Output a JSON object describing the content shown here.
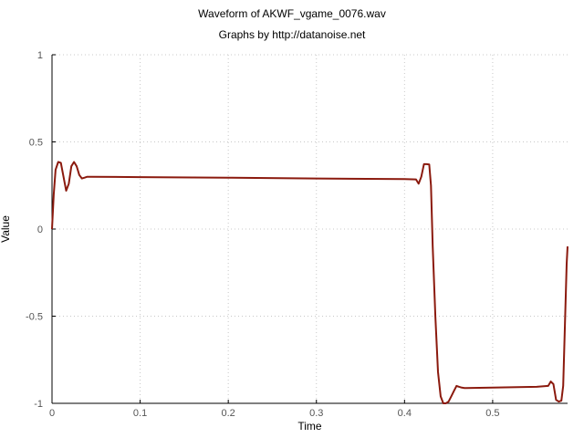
{
  "chart_data": {
    "type": "line",
    "title": "Waveform of AKWF_vgame_0076.wav",
    "subtitle": "Graphs by http://datanoise.net",
    "xlabel": "Time",
    "ylabel": "Value",
    "xlim": [
      0,
      0.585
    ],
    "ylim": [
      -1,
      1
    ],
    "xticks": [
      "0",
      "0.1",
      "0.2",
      "0.3",
      "0.4",
      "0.5"
    ],
    "xtick_values": [
      0,
      0.1,
      0.2,
      0.3,
      0.4,
      0.5
    ],
    "yticks": [
      "-1",
      "-0.5",
      "0",
      "0.5",
      "1"
    ],
    "ytick_values": [
      -1,
      -0.5,
      0,
      0.5,
      1
    ],
    "grid": true,
    "line_color": "#8b1a0e",
    "series": [
      {
        "x": [
          0,
          0.002,
          0.004,
          0.007,
          0.01,
          0.013,
          0.016,
          0.019,
          0.022,
          0.025,
          0.028,
          0.031,
          0.034,
          0.037,
          0.04,
          0.045,
          0.1,
          0.2,
          0.3,
          0.4,
          0.413,
          0.416,
          0.419,
          0.422,
          0.425,
          0.428,
          0.43,
          0.432,
          0.435,
          0.438,
          0.441,
          0.444,
          0.447,
          0.45,
          0.453,
          0.456,
          0.459,
          0.462,
          0.465,
          0.468,
          0.47,
          0.5,
          0.55,
          0.563,
          0.566,
          0.569,
          0.572,
          0.575,
          0.578,
          0.58,
          0.582,
          0.584,
          0.585
        ],
        "y": [
          0,
          0.2,
          0.34,
          0.385,
          0.38,
          0.3,
          0.22,
          0.26,
          0.36,
          0.385,
          0.36,
          0.31,
          0.29,
          0.295,
          0.3,
          0.3,
          0.298,
          0.295,
          0.29,
          0.287,
          0.285,
          0.26,
          0.3,
          0.372,
          0.372,
          0.37,
          0.25,
          -0.1,
          -0.5,
          -0.82,
          -0.96,
          -1.0,
          -1.0,
          -0.99,
          -0.96,
          -0.93,
          -0.9,
          -0.905,
          -0.91,
          -0.912,
          -0.912,
          -0.91,
          -0.905,
          -0.9,
          -0.875,
          -0.89,
          -0.98,
          -0.99,
          -0.985,
          -0.9,
          -0.55,
          -0.2,
          -0.1
        ]
      }
    ]
  }
}
